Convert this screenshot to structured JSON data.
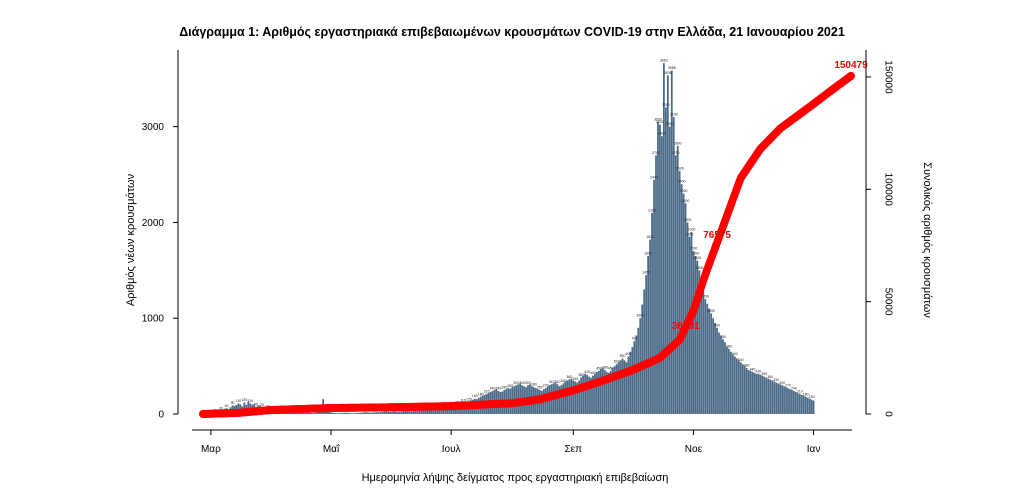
{
  "chart_data": {
    "type": "bar",
    "title": "Διάγραμμα 1: Αριθμός εργαστηριακά επιβεβαιωμένων κρουσμάτων COVID-19 στην Ελλάδα, 21 Ιανουαρίου 2021",
    "xlabel": "Ημερομηνία λήψης δείγματος προς εργαστηριακή επιβεβαίωση",
    "ylabel": "Αριθμός νέων κρουσμάτων",
    "y2label": "Συνολικός αριθμός κρουσμάτων",
    "x_start": "2020-02-26",
    "x_end": "2021-01-20",
    "x_ticks": [
      {
        "date": "2020-03-01",
        "label": "Μαρ"
      },
      {
        "date": "2020-05-01",
        "label": "Μαΐ"
      },
      {
        "date": "2020-07-01",
        "label": "Ιουλ"
      },
      {
        "date": "2020-09-01",
        "label": "Σεπ"
      },
      {
        "date": "2020-11-01",
        "label": "Νοε"
      },
      {
        "date": "2021-01-01",
        "label": "Ιαν"
      }
    ],
    "ylim": [
      0,
      3800
    ],
    "yticks": [
      0,
      1000,
      2000,
      3000
    ],
    "y2lim": [
      0,
      162000
    ],
    "y2ticks": [
      0,
      50000,
      100000,
      150000
    ],
    "series": [
      {
        "name": "",
        "kind": "bar",
        "color": "#4a6a88",
        "values": [
          1,
          2,
          3,
          4,
          5,
          8,
          12,
          18,
          25,
          30,
          40,
          55,
          60,
          45,
          70,
          90,
          85,
          95,
          110,
          100,
          80,
          120,
          95,
          130,
          110,
          98,
          105,
          75,
          88,
          92,
          70,
          60,
          55,
          50,
          45,
          42,
          40,
          30,
          28,
          20,
          25,
          22,
          18,
          15,
          16,
          14,
          12,
          10,
          9,
          10,
          11,
          20,
          50,
          30,
          15,
          12,
          10,
          14,
          20,
          30,
          40,
          155,
          85,
          45,
          25,
          18,
          12,
          10,
          9,
          8,
          10,
          11,
          12,
          14,
          10,
          9,
          8,
          8,
          10,
          12,
          14,
          15,
          18,
          20,
          16,
          14,
          15,
          18,
          20,
          18,
          19,
          22,
          25,
          28,
          26,
          22,
          25,
          30,
          28,
          24,
          26,
          29,
          32,
          35,
          33,
          30,
          28,
          32,
          36,
          40,
          38,
          42,
          45,
          48,
          50,
          55,
          60,
          58,
          62,
          60,
          55,
          58,
          62,
          66,
          70,
          75,
          80,
          85,
          90,
          95,
          100,
          110,
          115,
          120,
          130,
          125,
          140,
          150,
          160,
          155,
          170,
          180,
          190,
          200,
          210,
          220,
          230,
          240,
          250,
          260,
          240,
          230,
          235,
          250,
          260,
          270,
          265,
          280,
          290,
          300,
          310,
          320,
          300,
          290,
          280,
          300,
          310,
          290,
          280,
          270,
          260,
          250,
          240,
          260,
          270,
          290,
          300,
          310,
          320,
          330,
          310,
          290,
          300,
          320,
          340,
          350,
          360,
          370,
          350,
          340,
          330,
          350,
          380,
          400,
          420,
          410,
          390,
          380,
          400,
          420,
          440,
          450,
          470,
          480,
          460,
          440,
          430,
          450,
          480,
          500,
          520,
          540,
          560,
          580,
          560,
          540,
          600,
          650,
          700,
          760,
          820,
          900,
          1000,
          1142,
          1300,
          1450,
          1650,
          1820,
          2100,
          2444,
          2700,
          3050,
          3020,
          2900,
          3662,
          3200,
          3535,
          3000,
          3586,
          3100,
          2700,
          2800,
          2536,
          2400,
          2300,
          2200,
          2000,
          1850,
          1900,
          1700,
          1650,
          1600,
          1500,
          1400,
          1300,
          1200,
          1150,
          1100,
          1050,
          1000,
          950,
          900,
          850,
          820,
          780,
          750,
          700,
          680,
          650,
          620,
          600,
          580,
          560,
          540,
          520,
          500,
          480,
          460,
          450,
          440,
          430,
          420,
          420,
          410,
          400,
          390,
          380,
          370,
          360,
          350,
          340,
          330,
          320,
          310,
          300,
          290,
          280,
          270,
          260,
          250,
          240,
          230,
          220,
          210,
          200,
          190,
          180,
          170,
          160,
          150,
          140
        ]
      },
      {
        "name": "",
        "kind": "cumulative",
        "color": "#ff0000",
        "points": [
          {
            "date": "2020-02-26",
            "value": 0
          },
          {
            "date": "2020-03-15",
            "value": 500
          },
          {
            "date": "2020-04-01",
            "value": 1800
          },
          {
            "date": "2020-05-01",
            "value": 2650
          },
          {
            "date": "2020-06-01",
            "value": 3000
          },
          {
            "date": "2020-07-01",
            "value": 3500
          },
          {
            "date": "2020-08-01",
            "value": 4800
          },
          {
            "date": "2020-08-15",
            "value": 6500
          },
          {
            "date": "2020-09-01",
            "value": 10500
          },
          {
            "date": "2020-09-15",
            "value": 14500
          },
          {
            "date": "2020-10-01",
            "value": 19500
          },
          {
            "date": "2020-10-15",
            "value": 25000
          },
          {
            "date": "2020-10-25",
            "value": 33000
          },
          {
            "date": "2020-11-01",
            "value": 46000
          },
          {
            "date": "2020-11-07",
            "value": 62000
          },
          {
            "date": "2020-11-15",
            "value": 81000
          },
          {
            "date": "2020-11-25",
            "value": 105000
          },
          {
            "date": "2020-12-05",
            "value": 118000
          },
          {
            "date": "2020-12-15",
            "value": 127000
          },
          {
            "date": "2021-01-01",
            "value": 138000
          },
          {
            "date": "2021-01-10",
            "value": 144000
          },
          {
            "date": "2021-01-20",
            "value": 150479
          }
        ]
      }
    ],
    "annotations": [
      {
        "text": "36001",
        "date": "2020-10-28",
        "value": 36001
      },
      {
        "text": "76575",
        "date": "2020-11-13",
        "value": 76575
      },
      {
        "text": "150479",
        "date": "2021-01-20",
        "value": 150479
      }
    ],
    "grid": false,
    "legend": "none"
  }
}
